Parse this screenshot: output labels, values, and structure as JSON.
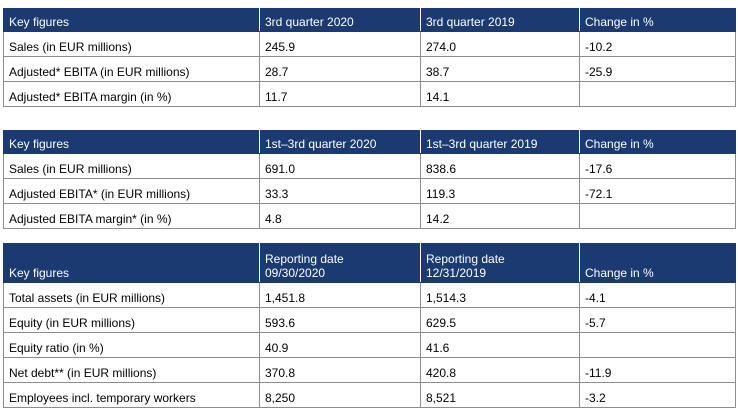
{
  "tables": [
    {
      "headers": [
        "Key figures",
        "3rd quarter 2020",
        "3rd quarter 2019",
        "Change in %"
      ],
      "rows": [
        [
          "Sales  (in EUR millions)",
          "245.9",
          "274.0",
          "-10.2"
        ],
        [
          "Adjusted* EBITA  (in EUR millions)",
          "28.7",
          "38.7",
          "-25.9"
        ],
        [
          "Adjusted* EBITA margin (in %)",
          "11.7",
          "14.1",
          ""
        ]
      ]
    },
    {
      "headers": [
        "Key figures",
        "1st–3rd quarter 2020",
        "1st–3rd quarter 2019",
        "Change in %"
      ],
      "rows": [
        [
          "Sales  (in EUR millions)",
          "691.0",
          "838.6",
          "-17.6"
        ],
        [
          "Adjusted EBITA*  (in EUR millions)",
          "33.3",
          "119.3",
          "-72.1"
        ],
        [
          "Adjusted EBITA margin* (in %)",
          "4.8",
          "14.2",
          ""
        ]
      ]
    },
    {
      "headers": [
        "Key figures",
        [
          "Reporting date",
          "09/30/2020"
        ],
        [
          "Reporting date",
          "12/31/2019"
        ],
        "Change in %"
      ],
      "rows": [
        [
          "Total assets  (in EUR millions)",
          "1,451.8",
          "1,514.3",
          "-4.1"
        ],
        [
          "Equity  (in EUR millions)",
          "593.6",
          "629.5",
          "-5.7"
        ],
        [
          "Equity ratio (in %)",
          "40.9",
          "41.6",
          ""
        ],
        [
          "Net debt**  (in EUR millions)",
          "370.8",
          "420.8",
          "-11.9"
        ],
        [
          "Employees incl. temporary workers",
          "8,250",
          "8,521",
          "-3.2"
        ]
      ]
    }
  ],
  "colors": {
    "header_bg": "#1b3a72",
    "header_text": "#ffffff",
    "border": "#8c8c8c"
  }
}
